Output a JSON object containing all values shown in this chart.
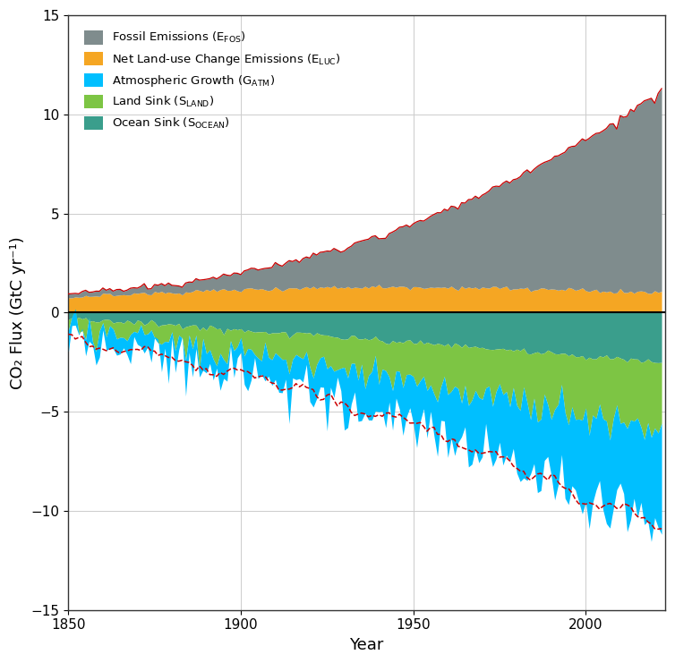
{
  "xlabel": "Year",
  "ylabel": "CO₂ Flux (GtC yr⁻¹)",
  "xlim": [
    1850,
    2023
  ],
  "ylim": [
    -15,
    15
  ],
  "yticks": [
    -15,
    -10,
    -5,
    0,
    5,
    10,
    15
  ],
  "xticks": [
    1850,
    1900,
    1950,
    2000
  ],
  "colors": {
    "fossil": "#7F8C8D",
    "luc": "#F5A623",
    "atm": "#00BFFF",
    "land": "#7DC544",
    "ocean": "#3A9E8C",
    "red_line": "#CC0000",
    "zero_line": "#000000",
    "grid": "#CCCCCC"
  }
}
